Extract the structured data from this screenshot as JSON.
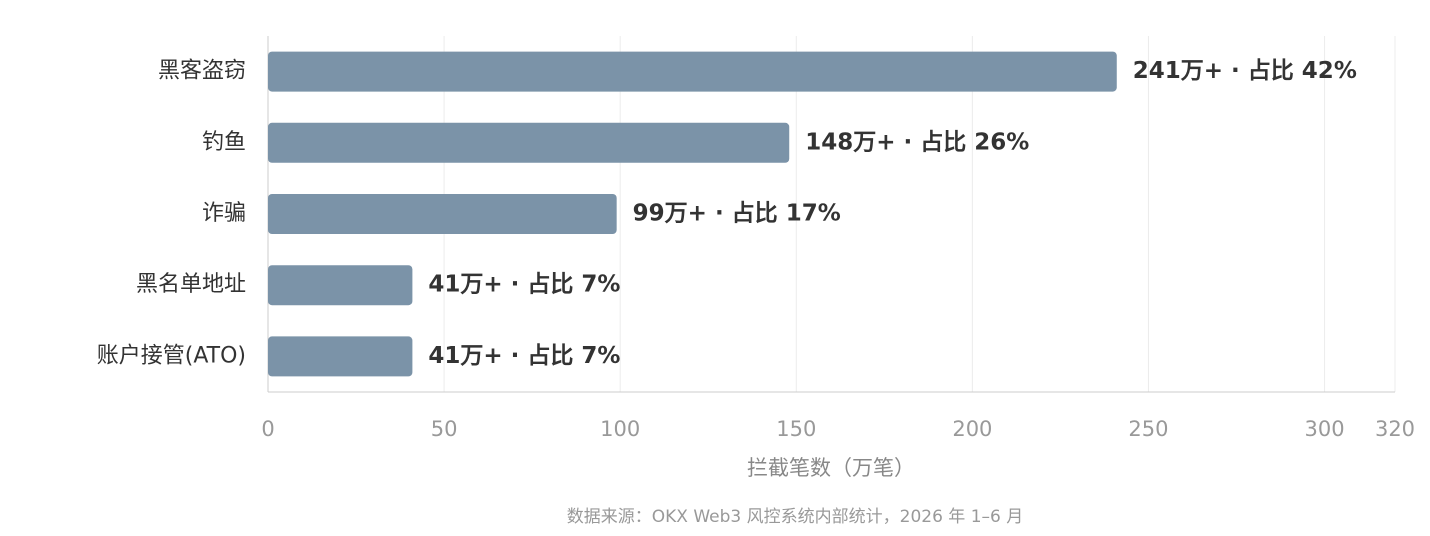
{
  "chart_data": {
    "type": "bar",
    "orientation": "horizontal",
    "categories": [
      "黑客盗窃",
      "钓鱼",
      "诈骗",
      "黑名单地址",
      "账户接管(ATO)"
    ],
    "values": [
      241,
      148,
      99,
      41,
      41
    ],
    "value_labels": [
      "241万+ · 占比 42%",
      "148万+ · 占比 26%",
      "99万+ · 占比 17%",
      "41万+ · 占比 7%",
      "41万+ · 占比 7%"
    ],
    "color": "#7b93a8",
    "xlim": [
      0,
      320
    ],
    "xticks": [
      0,
      50,
      100,
      150,
      200,
      250,
      300,
      320
    ],
    "xlabel": "拦截笔数（万笔）",
    "source": "数据来源：OKX Web3 风控系统内部统计，2026 年 1–6 月",
    "grid": true
  }
}
